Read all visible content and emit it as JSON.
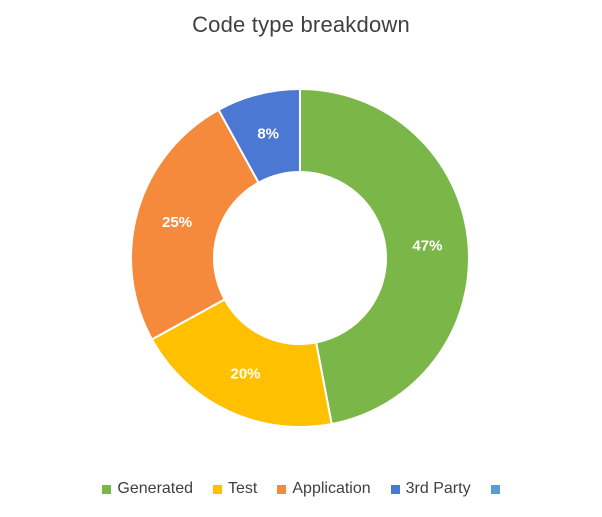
{
  "chart_data": {
    "type": "pie",
    "variant": "donut",
    "title": "Code type breakdown",
    "categories": [
      "Generated",
      "Test",
      "Application",
      "3rd Party",
      ""
    ],
    "values": [
      47,
      20,
      25,
      8,
      0
    ],
    "labels": [
      "47%",
      "20%",
      "25%",
      "8%",
      ""
    ],
    "colors": [
      "#7ab648",
      "#ffc000",
      "#f68a3c",
      "#4a78d3",
      "#5b9bd5"
    ],
    "legend_position": "bottom"
  }
}
